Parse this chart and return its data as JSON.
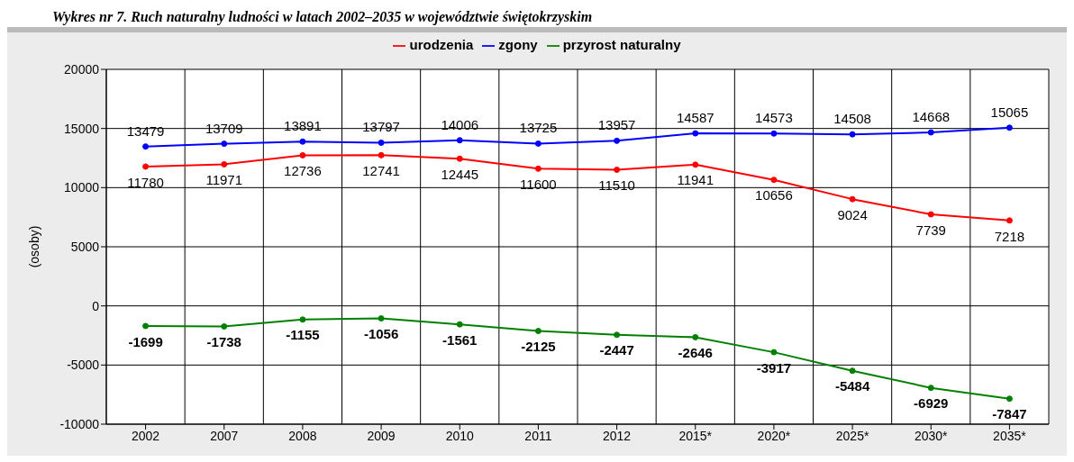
{
  "chart_data": {
    "type": "line",
    "title": "Wykres nr 7. Ruch naturalny ludności w latach 2002–2035 w województwie świętokrzyskim",
    "ylabel": "(osoby)",
    "categories": [
      "2002",
      "2007",
      "2008",
      "2009",
      "2010",
      "2011",
      "2012",
      "2015*",
      "2020*",
      "2025*",
      "2030*",
      "2035*"
    ],
    "series": [
      {
        "name": "urodzenia",
        "color": "#ff0000",
        "values": [
          11780,
          11971,
          12736,
          12741,
          12445,
          11600,
          11510,
          11941,
          10656,
          9024,
          7739,
          7218
        ]
      },
      {
        "name": "zgony",
        "color": "#0000ff",
        "values": [
          13479,
          13709,
          13891,
          13797,
          14006,
          13725,
          13957,
          14587,
          14573,
          14508,
          14668,
          15065
        ]
      },
      {
        "name": "przyrost naturalny",
        "color": "#008000",
        "values": [
          -1699,
          -1738,
          -1155,
          -1056,
          -1561,
          -2125,
          -2447,
          -2646,
          -3917,
          -5484,
          -6929,
          -7847
        ]
      }
    ],
    "ylim": [
      -10000,
      20000
    ],
    "yticks": [
      -10000,
      -5000,
      0,
      5000,
      10000,
      15000,
      20000
    ],
    "grid": true,
    "legend": "top",
    "marker": "circle",
    "line_style": "solid",
    "data_labels": true
  }
}
